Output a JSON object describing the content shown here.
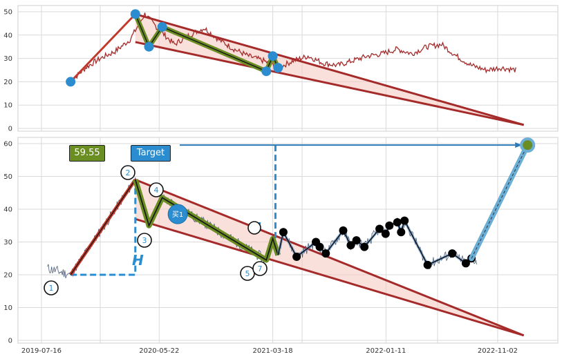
{
  "colors": {
    "grid": "#d9d9d9",
    "wedge_line": "#a52a2a",
    "wedge_fill": "#f6c7bd",
    "zigzag_outer": "#6b8e23",
    "zigzag_inner": "#1a1a1a",
    "marker_blue": "#2b8ccf",
    "price_top": "#a52a2a",
    "price_bottom": "#4a5a78",
    "dashed": "#2b8ccf",
    "projection": "#6baed6",
    "black_pts": "#000000",
    "price_box": "#6b8e23",
    "target_box": "#2b8ccf"
  },
  "price_label": "59.55",
  "target_label": "Target",
  "buy_marker": "买1",
  "h_marker": "H",
  "point_labels": [
    "1",
    "2",
    "3",
    "4",
    "5",
    "7"
  ],
  "chart_data": [
    {
      "type": "line",
      "panel": "top",
      "ylim": [
        0,
        50
      ],
      "yticks": [
        0,
        10,
        20,
        30,
        40,
        50
      ],
      "series": [
        {
          "values": [
            20,
            26,
            30,
            33,
            38,
            49,
            42,
            36,
            40,
            43,
            38,
            34,
            31,
            29,
            26,
            29,
            31,
            28,
            27,
            29,
            31,
            32,
            34,
            32,
            35,
            36,
            31,
            27,
            25,
            26,
            25
          ]
        }
      ],
      "pattern_points": [
        {
          "x": "2019-10-01",
          "y": 20
        },
        {
          "x": "2020-03-20",
          "y": 49
        },
        {
          "x": "2020-04-25",
          "y": 35
        },
        {
          "x": "2020-05-30",
          "y": 43.5
        },
        {
          "x": "2021-03-01",
          "y": 24.5
        },
        {
          "x": "2021-03-18",
          "y": 31
        },
        {
          "x": "2021-04-01",
          "y": 26
        }
      ]
    },
    {
      "type": "line",
      "panel": "bottom",
      "ylim": [
        0,
        60
      ],
      "yticks": [
        0,
        10,
        20,
        30,
        40,
        50,
        60
      ],
      "xticks": [
        "2019-07-16",
        "2020-05-22",
        "2021-03-18",
        "2022-01-11",
        "2022-11-02"
      ],
      "pattern_points": [
        {
          "label": "1",
          "x": "2019-10-01",
          "y": 20
        },
        {
          "label": "2",
          "x": "2020-03-20",
          "y": 49
        },
        {
          "label": "3",
          "x": "2020-04-25",
          "y": 35
        },
        {
          "label": "4",
          "x": "2020-05-30",
          "y": 43.5
        },
        {
          "label": "5",
          "x": "2021-03-01",
          "y": 24.5
        },
        {
          "label": "",
          "x": "2021-03-18",
          "y": 31
        },
        {
          "label": "7",
          "x": "2021-04-01",
          "y": 26
        }
      ],
      "followup_points": [
        {
          "x": "2021-04-15",
          "y": 33
        },
        {
          "x": "2021-05-20",
          "y": 25.5
        },
        {
          "x": "2021-07-10",
          "y": 30
        },
        {
          "x": "2021-07-20",
          "y": 28.5
        },
        {
          "x": "2021-08-05",
          "y": 26.5
        },
        {
          "x": "2021-09-20",
          "y": 33.5
        },
        {
          "x": "2021-10-10",
          "y": 29
        },
        {
          "x": "2021-10-25",
          "y": 30.5
        },
        {
          "x": "2021-11-15",
          "y": 28.5
        },
        {
          "x": "2021-12-25",
          "y": 34
        },
        {
          "x": "2022-01-10",
          "y": 32.5
        },
        {
          "x": "2022-01-20",
          "y": 35
        },
        {
          "x": "2022-02-10",
          "y": 36
        },
        {
          "x": "2022-02-20",
          "y": 33
        },
        {
          "x": "2022-03-01",
          "y": 36.5
        },
        {
          "x": "2022-05-01",
          "y": 23
        },
        {
          "x": "2022-07-05",
          "y": 26.5
        },
        {
          "x": "2022-08-10",
          "y": 23.5
        },
        {
          "x": "2022-08-25",
          "y": 25
        }
      ],
      "target": {
        "x": "2023-01-20",
        "y": 59.55
      },
      "wedge_upper": [
        {
          "x": "2020-03-20",
          "y": 49
        },
        {
          "x": "2023-01-10",
          "y": 1.5
        }
      ],
      "wedge_lower": [
        {
          "x": "2020-03-20",
          "y": 37
        },
        {
          "x": "2023-01-10",
          "y": 1.5
        }
      ]
    }
  ]
}
